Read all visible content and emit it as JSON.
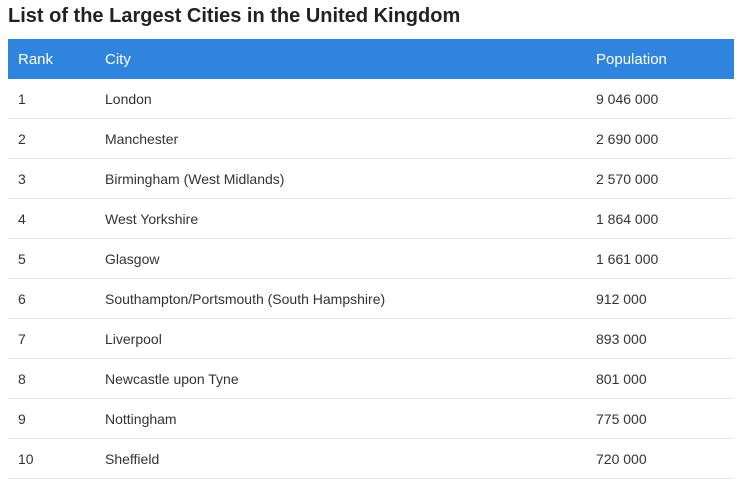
{
  "title": "List of the Largest Cities in the United Kingdom",
  "accent_color": "#2f84dd",
  "table": {
    "headers": {
      "rank": "Rank",
      "city": "City",
      "population": "Population"
    },
    "rows": [
      {
        "rank": "1",
        "city": "London",
        "population": "9 046 000"
      },
      {
        "rank": "2",
        "city": "Manchester",
        "population": "2 690 000"
      },
      {
        "rank": "3",
        "city": "Birmingham (West Midlands)",
        "population": "2 570 000"
      },
      {
        "rank": "4",
        "city": "West Yorkshire",
        "population": "1 864 000"
      },
      {
        "rank": "5",
        "city": "Glasgow",
        "population": "1 661 000"
      },
      {
        "rank": "6",
        "city": "Southampton/Portsmouth (South Hampshire)",
        "population": "912 000"
      },
      {
        "rank": "7",
        "city": "Liverpool",
        "population": "893 000"
      },
      {
        "rank": "8",
        "city": "Newcastle upon Tyne",
        "population": "801 000"
      },
      {
        "rank": "9",
        "city": "Nottingham",
        "population": "775 000"
      },
      {
        "rank": "10",
        "city": "Sheffield",
        "population": "720 000"
      }
    ]
  }
}
